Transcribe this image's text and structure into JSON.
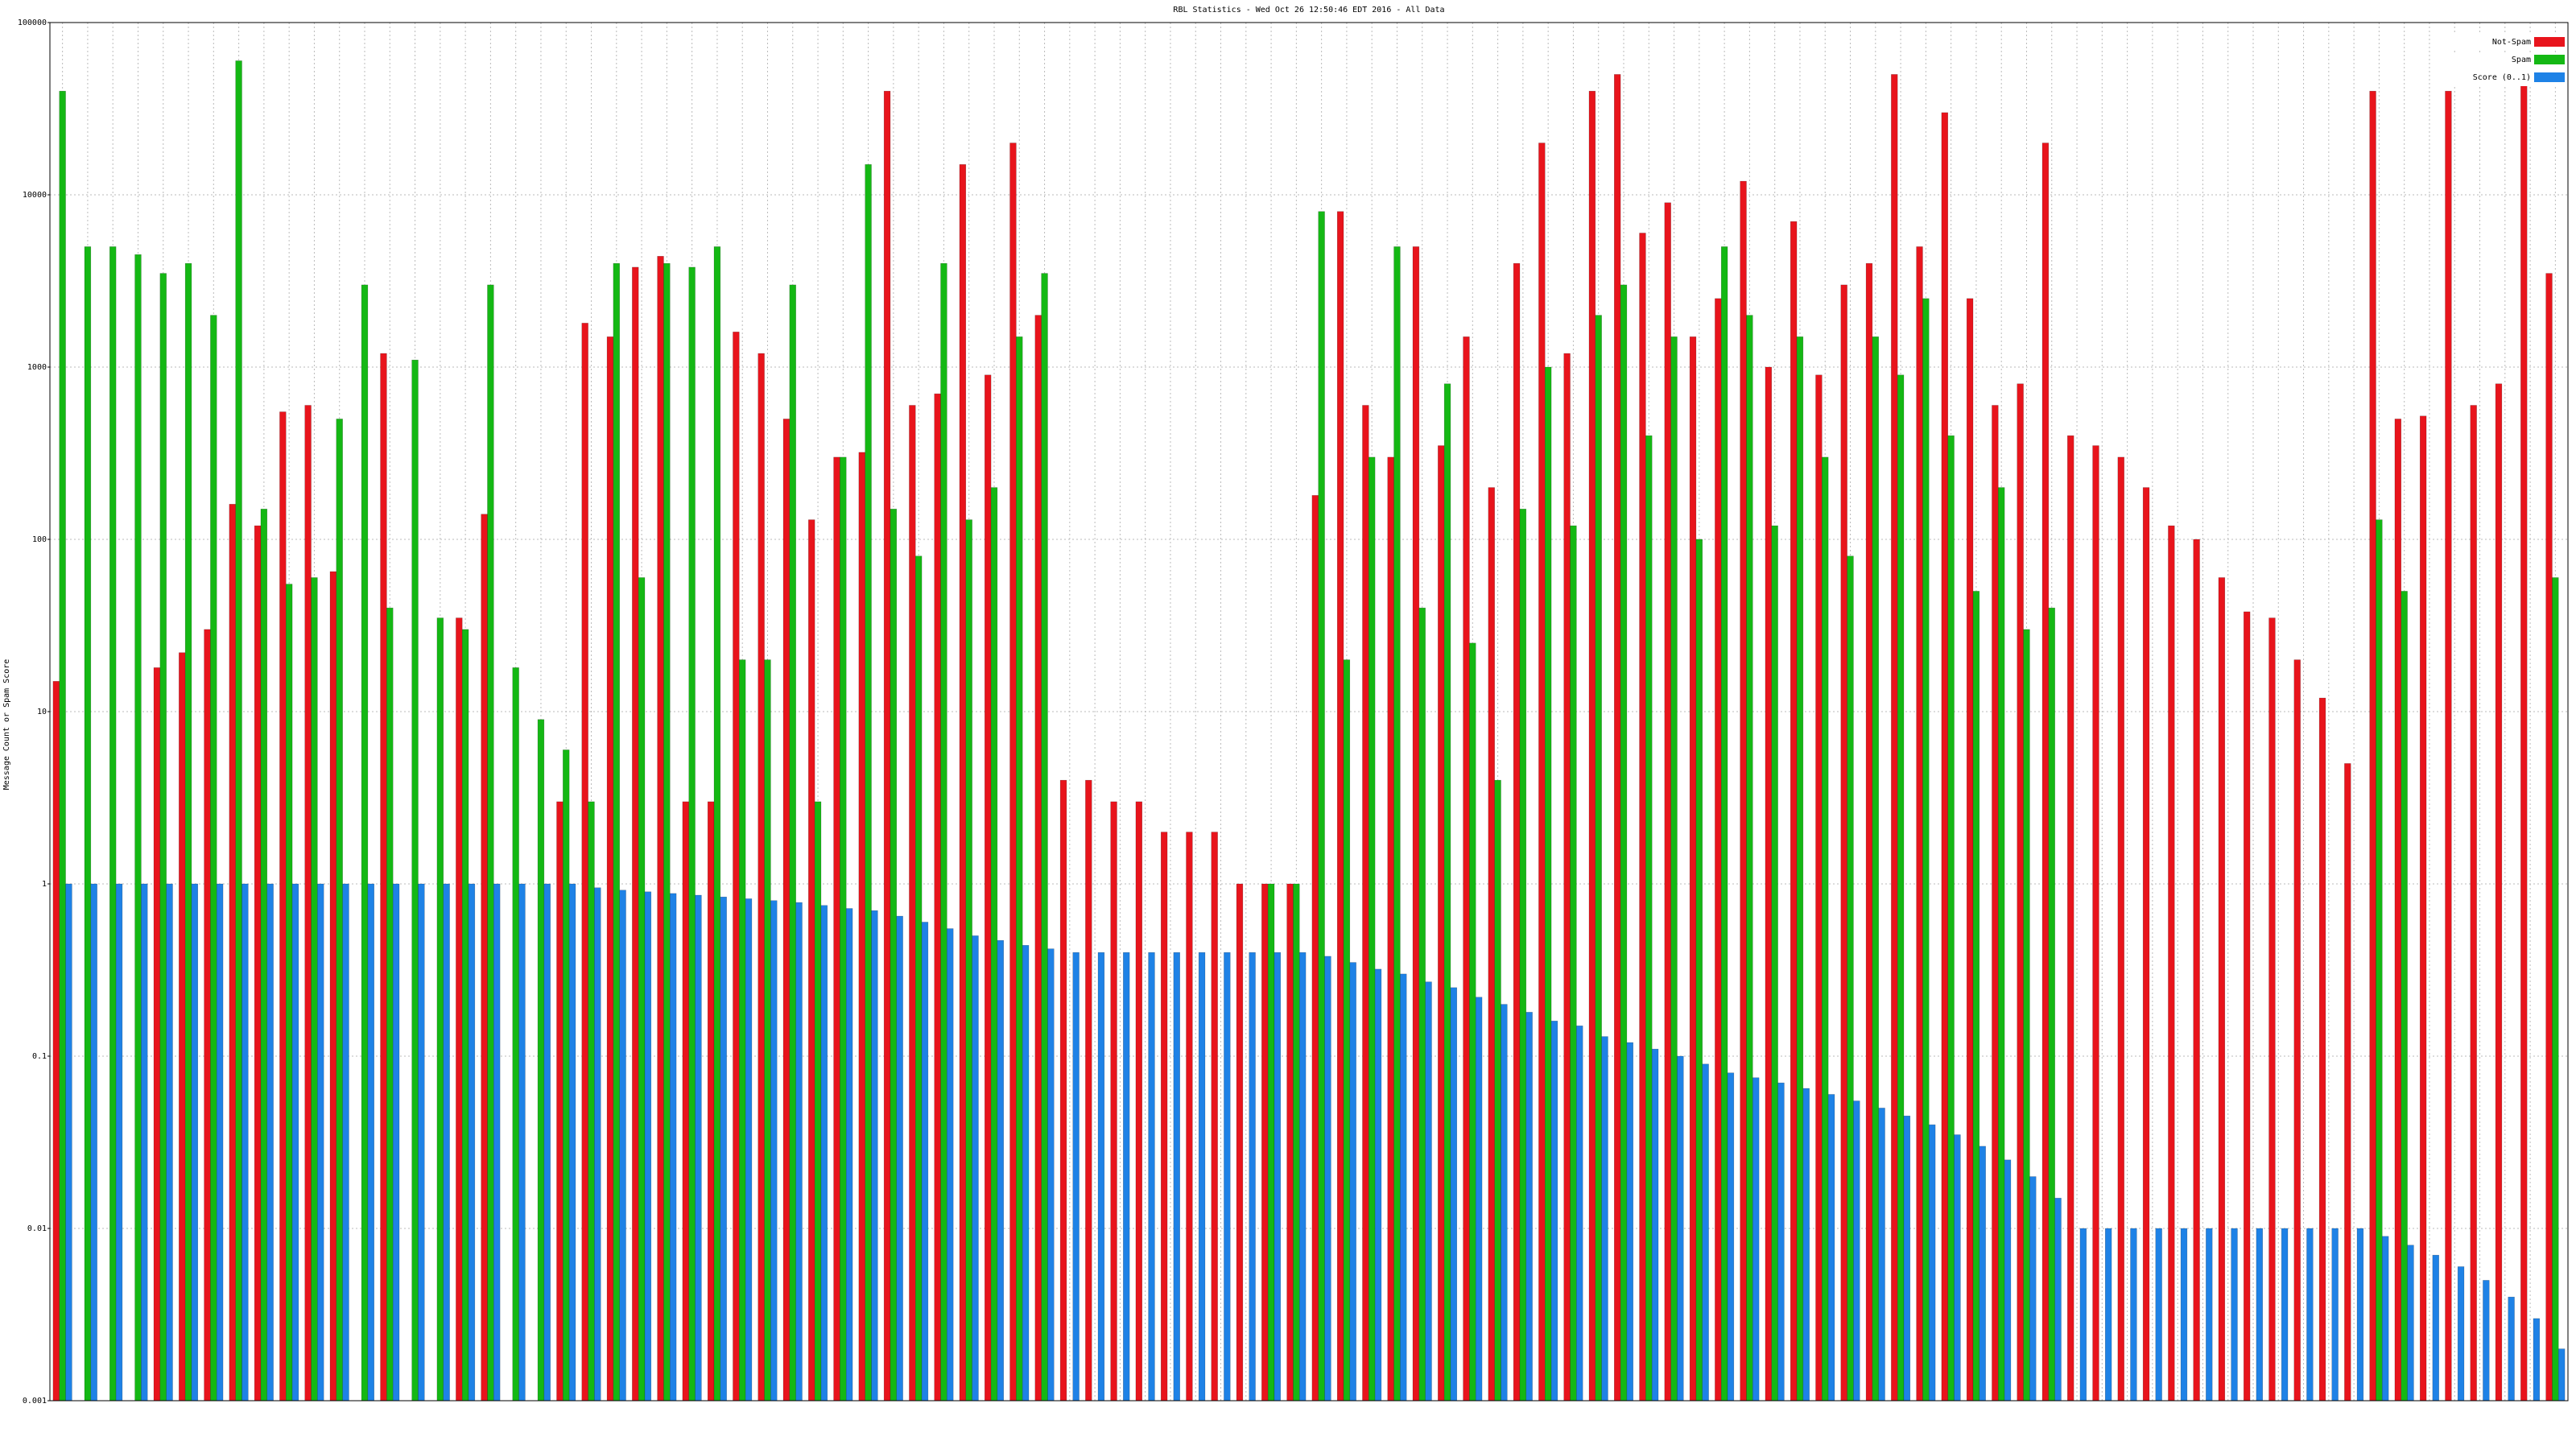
{
  "chart_data": {
    "type": "bar",
    "title": "RBL Statistics - Wed Oct 26 12:50:46 EDT 2016 - All Data",
    "y_label": "Message Count or Spam Score",
    "log_scale": true,
    "grid": true,
    "legend": "top-right",
    "ylim": [
      0.001,
      100000
    ],
    "yticks": [
      0.001,
      0.01,
      0.1,
      1,
      10,
      100,
      1000,
      10000,
      100000
    ],
    "categories": [
      null,
      null,
      null,
      null,
      null,
      null,
      null,
      null,
      null,
      null,
      null,
      null,
      null,
      null,
      null,
      null,
      null,
      null,
      null,
      null,
      null,
      null,
      null,
      null,
      null,
      null,
      null,
      null,
      null,
      null,
      null,
      null,
      null,
      null,
      null,
      null,
      null,
      null,
      null,
      null,
      null,
      null,
      null,
      null,
      null,
      null,
      null,
      null,
      null,
      null,
      null,
      null,
      null,
      null,
      null,
      null,
      null,
      null,
      null,
      null,
      null,
      null,
      null,
      null,
      null,
      null,
      null,
      null,
      null,
      null,
      null,
      null,
      null,
      null,
      null,
      null,
      null,
      null,
      null,
      null,
      null,
      null,
      null,
      null,
      null,
      null,
      null,
      null,
      null,
      null,
      null,
      null,
      null,
      null,
      null,
      null,
      null,
      null,
      null,
      null
    ],
    "series": [
      {
        "name": "Not-Spam",
        "color": "#e8141c",
        "values": [
          15,
          null,
          null,
          null,
          18,
          22,
          30,
          160,
          120,
          550,
          600,
          65,
          null,
          1200,
          null,
          null,
          35,
          140,
          null,
          null,
          3,
          1800,
          1500,
          3800,
          4400,
          3,
          3,
          1600,
          1200,
          500,
          130,
          300,
          320,
          40000,
          600,
          700,
          15000,
          900,
          20000,
          2000,
          4,
          4,
          3,
          3,
          2,
          2,
          2,
          1,
          1,
          1,
          180,
          8000,
          600,
          300,
          5000,
          350,
          1500,
          200,
          4000,
          20000,
          1200,
          40000,
          50000,
          6000,
          9000,
          1500,
          2500,
          12000,
          1000,
          7000,
          900,
          3000,
          4000,
          50000,
          5000,
          30000,
          2500,
          600,
          800,
          20000,
          400,
          350,
          300,
          200,
          120,
          100,
          60,
          38,
          35,
          20,
          12,
          5,
          40000,
          500,
          520,
          40000,
          600,
          800,
          50000,
          3500
        ]
      },
      {
        "name": "Spam",
        "color": "#14b814",
        "values": [
          40000,
          5000,
          5000,
          4500,
          3500,
          4000,
          2000,
          60000,
          150,
          55,
          60,
          500,
          3000,
          40,
          1100,
          35,
          30,
          3000,
          18,
          9,
          6,
          3,
          4000,
          60,
          4000,
          3800,
          5000,
          20,
          20,
          3000,
          3,
          300,
          15000,
          150,
          80,
          4000,
          130,
          200,
          1500,
          3500,
          null,
          null,
          null,
          null,
          null,
          null,
          null,
          null,
          1,
          1,
          8000,
          20,
          300,
          5000,
          40,
          800,
          25,
          4,
          150,
          1000,
          120,
          2000,
          3000,
          400,
          1500,
          100,
          5000,
          2000,
          120,
          1500,
          300,
          80,
          1500,
          900,
          2500,
          400,
          50,
          200,
          30,
          40,
          null,
          null,
          null,
          null,
          null,
          null,
          null,
          null,
          null,
          null,
          null,
          null,
          130,
          50,
          null,
          null,
          null,
          null,
          null,
          60
        ]
      },
      {
        "name": "Score (0..1)",
        "color": "#1e82e6",
        "values": [
          1,
          1,
          1,
          1,
          1,
          1,
          1,
          1,
          1,
          1,
          1,
          1,
          1,
          1,
          1,
          1,
          1,
          1,
          1,
          1,
          1,
          0.95,
          0.92,
          0.9,
          0.88,
          0.86,
          0.84,
          0.82,
          0.8,
          0.78,
          0.75,
          0.72,
          0.7,
          0.65,
          0.6,
          0.55,
          0.5,
          0.47,
          0.44,
          0.42,
          0.4,
          0.4,
          0.4,
          0.4,
          0.4,
          0.4,
          0.4,
          0.4,
          0.4,
          0.4,
          0.38,
          0.35,
          0.32,
          0.3,
          0.27,
          0.25,
          0.22,
          0.2,
          0.18,
          0.16,
          0.15,
          0.13,
          0.12,
          0.11,
          0.1,
          0.09,
          0.08,
          0.075,
          0.07,
          0.065,
          0.06,
          0.055,
          0.05,
          0.045,
          0.04,
          0.035,
          0.03,
          0.025,
          0.02,
          0.015,
          0.01,
          0.01,
          0.01,
          0.01,
          0.01,
          0.01,
          0.01,
          0.01,
          0.01,
          0.01,
          0.01,
          0.01,
          0.009,
          0.008,
          0.007,
          0.006,
          0.005,
          0.004,
          0.003,
          0.002
        ]
      }
    ]
  }
}
